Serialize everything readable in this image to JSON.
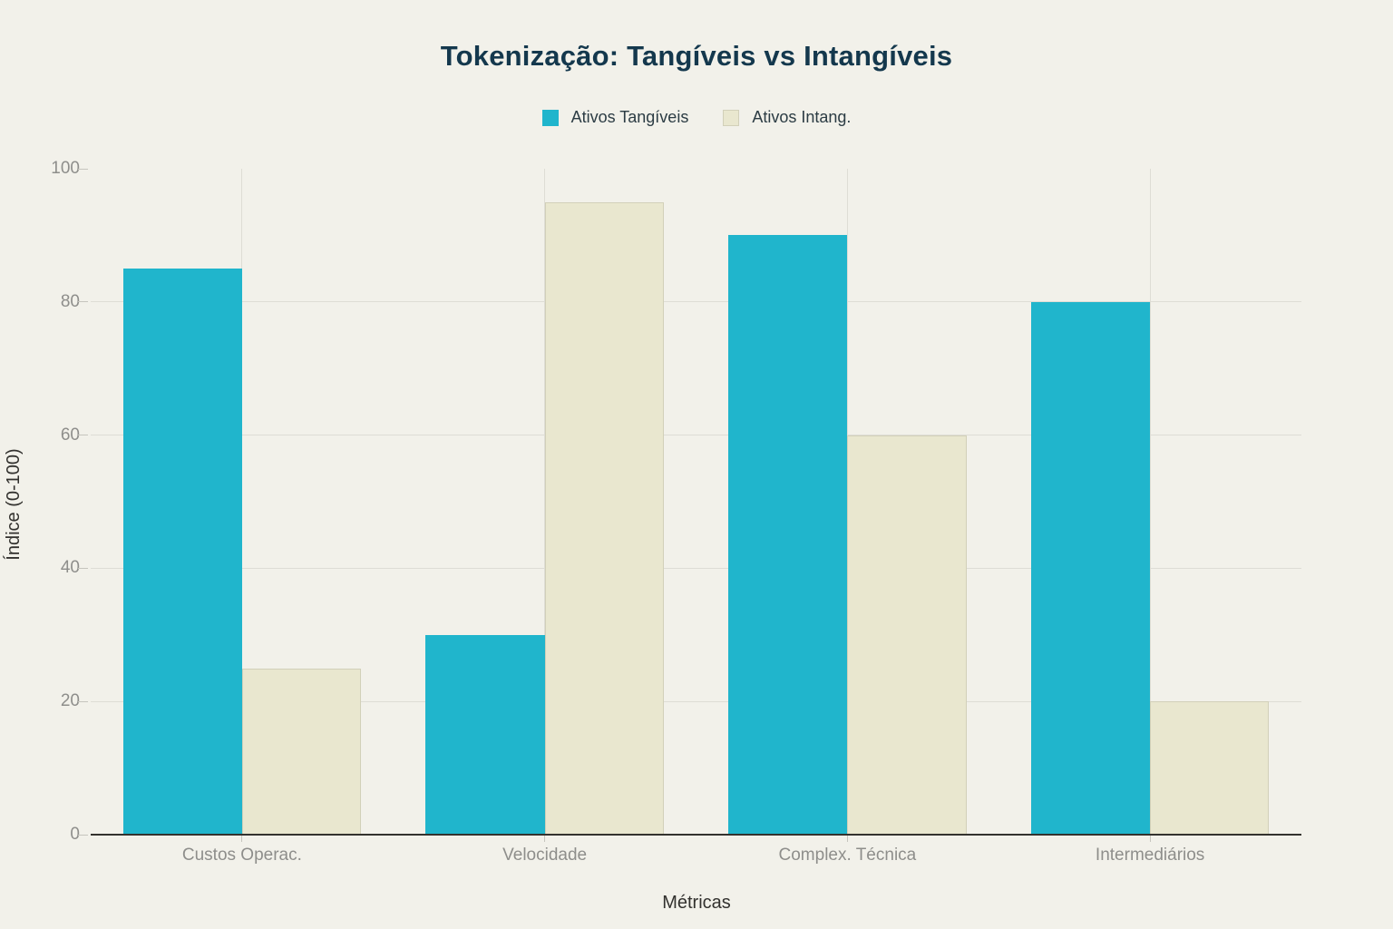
{
  "title": "Tokenização: Tangíveis vs Intangíveis",
  "legend": {
    "items": [
      {
        "label": "Ativos Tangíveis",
        "color": "#20B5CC"
      },
      {
        "label": "Ativos Intang.",
        "color": "#E9E7CF",
        "border": "#D2D0B9"
      }
    ]
  },
  "chart_data": {
    "type": "bar",
    "categories": [
      "Custos Operac.",
      "Velocidade",
      "Complex. Técnica",
      "Intermediários"
    ],
    "series": [
      {
        "name": "Ativos Tangíveis",
        "color": "#20B5CC",
        "values": [
          85,
          30,
          90,
          80
        ]
      },
      {
        "name": "Ativos Intang.",
        "color": "#E9E7CF",
        "border": "#D2D0B9",
        "values": [
          25,
          95,
          60,
          20
        ]
      }
    ],
    "title": "Tokenização: Tangíveis vs Intangíveis",
    "xlabel": "Métricas",
    "ylabel": "Índice (0-100)",
    "ylim": [
      0,
      100
    ],
    "yticks": [
      0,
      20,
      40,
      60,
      80,
      100
    ],
    "grid": true,
    "legend_position": "top-center",
    "background_color": "#F2F1EA",
    "gridline_color": "#DEDDD5",
    "axis_line_color": "#33322E",
    "tick_label_color": "#8E8E8B",
    "title_color": "#14384D"
  }
}
